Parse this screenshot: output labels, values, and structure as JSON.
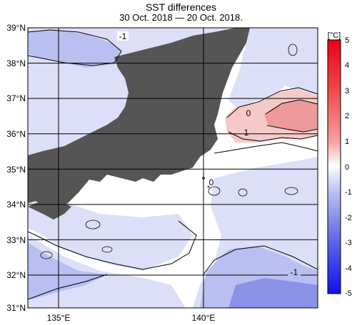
{
  "title": "SST differences",
  "subtitle": "30 Oct. 2018 — 20 Oct. 2018.",
  "map": {
    "lat_labels": [
      "39°N",
      "38°N",
      "37°N",
      "36°N",
      "35°N",
      "34°N",
      "33°N",
      "32°N",
      "31°N"
    ],
    "lon_labels": [
      "135°E",
      "140°E"
    ],
    "contour_labels": [
      "-1",
      "0",
      "1",
      "0",
      "-1"
    ],
    "colors": {
      "land": "#555555",
      "neutral": "#ffffff",
      "light_blue": "#dcdff7",
      "mid_blue": "#b9bff0",
      "deep_blue": "#8a93e8",
      "light_red": "#f6c9c9",
      "red": "#ee9a9a"
    }
  },
  "colorbar": {
    "unit": "[°C]",
    "ticks": [
      "5",
      "4",
      "3",
      "2",
      "1",
      "0",
      "-1",
      "-2",
      "-3",
      "-4",
      "-5"
    ]
  }
}
